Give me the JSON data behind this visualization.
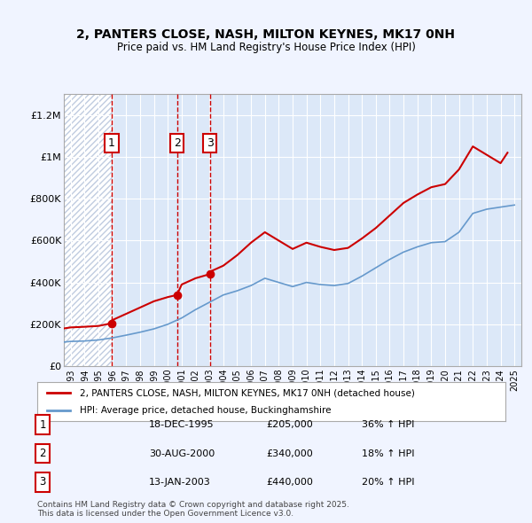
{
  "title": "2, PANTERS CLOSE, NASH, MILTON KEYNES, MK17 0NH",
  "subtitle": "Price paid vs. HM Land Registry's House Price Index (HPI)",
  "background_color": "#f0f4ff",
  "plot_bg_color": "#dce8f8",
  "hatch_color": "#c0d0e8",
  "legend_line1": "2, PANTERS CLOSE, NASH, MILTON KEYNES, MK17 0NH (detached house)",
  "legend_line2": "HPI: Average price, detached house, Buckinghamshire",
  "footer": "Contains HM Land Registry data © Crown copyright and database right 2025.\nThis data is licensed under the Open Government Licence v3.0.",
  "sale_points": [
    {
      "label": "1",
      "date_x": 1995.96,
      "price": 205000,
      "date_str": "18-DEC-1995",
      "price_str": "£205,000",
      "change": "36% ↑ HPI"
    },
    {
      "label": "2",
      "date_x": 2000.66,
      "price": 340000,
      "date_str": "30-AUG-2000",
      "price_str": "£340,000",
      "change": "18% ↑ HPI"
    },
    {
      "label": "3",
      "date_x": 2003.04,
      "price": 440000,
      "date_str": "13-JAN-2003",
      "price_str": "£440,000",
      "change": "20% ↑ HPI"
    }
  ],
  "hpi_line_color": "#6699cc",
  "price_line_color": "#cc0000",
  "ylim": [
    0,
    1300000
  ],
  "xlim": [
    1992.5,
    2025.5
  ],
  "yticks": [
    0,
    200000,
    400000,
    600000,
    800000,
    1000000,
    1200000
  ],
  "ytick_labels": [
    "£0",
    "£200K",
    "£400K",
    "£600K",
    "£800K",
    "£1M",
    "£1.2M"
  ],
  "xticks": [
    1993,
    1994,
    1995,
    1996,
    1997,
    1998,
    1999,
    2000,
    2001,
    2002,
    2003,
    2004,
    2005,
    2006,
    2007,
    2008,
    2009,
    2010,
    2011,
    2012,
    2013,
    2014,
    2015,
    2016,
    2017,
    2018,
    2019,
    2020,
    2021,
    2022,
    2023,
    2024,
    2025
  ],
  "hpi_data_x": [
    1992.5,
    1993,
    1994,
    1995,
    1996,
    1997,
    1998,
    1999,
    2000,
    2001,
    2002,
    2003,
    2004,
    2005,
    2006,
    2007,
    2008,
    2009,
    2010,
    2011,
    2012,
    2013,
    2014,
    2015,
    2016,
    2017,
    2018,
    2019,
    2020,
    2021,
    2022,
    2023,
    2024,
    2025
  ],
  "hpi_data_y": [
    115000,
    118000,
    120000,
    125000,
    135000,
    148000,
    162000,
    178000,
    200000,
    230000,
    270000,
    305000,
    340000,
    360000,
    385000,
    420000,
    400000,
    380000,
    400000,
    390000,
    385000,
    395000,
    430000,
    470000,
    510000,
    545000,
    570000,
    590000,
    595000,
    640000,
    730000,
    750000,
    760000,
    770000
  ],
  "price_data_x": [
    1992.5,
    1993,
    1994,
    1995,
    1995.96,
    1996,
    1997,
    1998,
    1999,
    2000,
    2000.66,
    2001,
    2002,
    2003.04,
    2003,
    2004,
    2005,
    2006,
    2007,
    2008,
    2009,
    2010,
    2011,
    2012,
    2013,
    2014,
    2015,
    2016,
    2017,
    2018,
    2019,
    2020,
    2021,
    2022,
    2023,
    2024,
    2024.5
  ],
  "price_data_y": [
    180000,
    185000,
    188000,
    192000,
    205000,
    220000,
    250000,
    280000,
    310000,
    330000,
    340000,
    390000,
    420000,
    440000,
    450000,
    480000,
    530000,
    590000,
    640000,
    600000,
    560000,
    590000,
    570000,
    555000,
    565000,
    610000,
    660000,
    720000,
    780000,
    820000,
    855000,
    870000,
    940000,
    1050000,
    1010000,
    970000,
    1020000
  ]
}
